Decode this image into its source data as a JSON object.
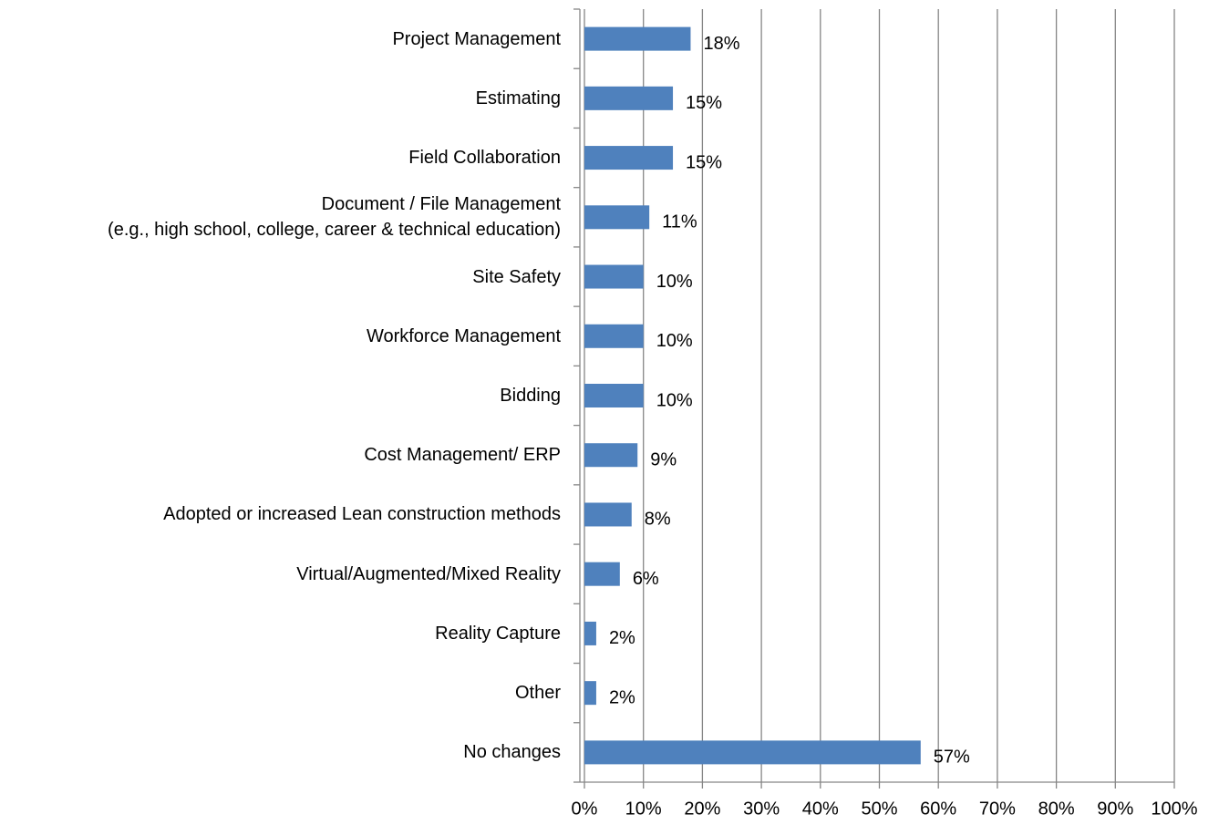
{
  "chart_data": {
    "type": "bar",
    "orientation": "horizontal",
    "categories": [
      "Project Management",
      "Estimating",
      "Field Collaboration",
      "Document / File Management\n(e.g., high school, college, career & technical education)",
      "Site Safety",
      "Workforce Management",
      "Bidding",
      "Cost Management/ ERP",
      "Adopted or increased Lean construction methods",
      "Virtual/Augmented/Mixed Reality",
      "Reality Capture",
      "Other",
      "No changes"
    ],
    "values": [
      18,
      15,
      15,
      11,
      10,
      10,
      10,
      9,
      8,
      6,
      2,
      2,
      57
    ],
    "value_labels": [
      "18%",
      "15%",
      "15%",
      "11%",
      "10%",
      "10%",
      "10%",
      "9%",
      "8%",
      "6%",
      "2%",
      "2%",
      "57%"
    ],
    "color": "#4f81bd",
    "xlim": [
      0,
      100
    ],
    "xticks": [
      {
        "value": 0,
        "label": "0%"
      },
      {
        "value": 10,
        "label": "10%"
      },
      {
        "value": 20,
        "label": "20%"
      },
      {
        "value": 30,
        "label": "30%"
      },
      {
        "value": 40,
        "label": "40%"
      },
      {
        "value": 50,
        "label": "50%"
      },
      {
        "value": 60,
        "label": "60%"
      },
      {
        "value": 70,
        "label": "70%"
      },
      {
        "value": 80,
        "label": "80%"
      },
      {
        "value": 90,
        "label": "90%"
      },
      {
        "value": 100,
        "label": "100%"
      }
    ],
    "grid": true
  }
}
